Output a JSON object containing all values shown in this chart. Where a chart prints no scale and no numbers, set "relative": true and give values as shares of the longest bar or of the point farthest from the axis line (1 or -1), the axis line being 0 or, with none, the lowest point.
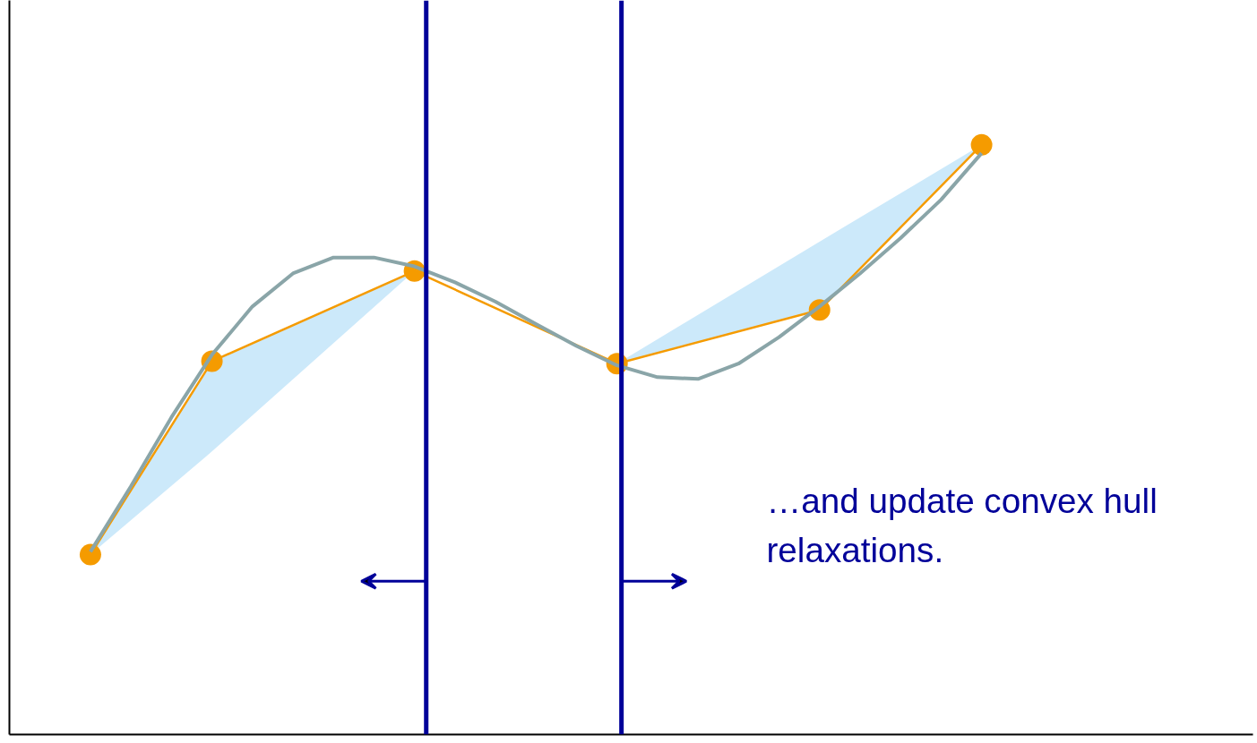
{
  "chart_data": {
    "type": "line",
    "relative": true,
    "grid": false,
    "tick_labels": false,
    "marker": "none",
    "categories": [
      null,
      null,
      null,
      null,
      null,
      null,
      null,
      null,
      null,
      null,
      null,
      null,
      null,
      null,
      null,
      null,
      null,
      null,
      null,
      null,
      null,
      null,
      null
    ],
    "series": [
      {
        "color": "#f59b00",
        "marker": "circle",
        "values": [
          0.305,
          null,
          null,
          0.633,
          null,
          null,
          null,
          null,
          0.786,
          null,
          null,
          null,
          null,
          0.629,
          null,
          null,
          null,
          null,
          0.72,
          null,
          null,
          null,
          1.0
        ],
        "lower": [
          0.305,
          null,
          null,
          0.48,
          null,
          null,
          null,
          null,
          0.786,
          null,
          null,
          null,
          null,
          0.629,
          null,
          null,
          null,
          null,
          0.72,
          null,
          null,
          null,
          1.0
        ],
        "upper": [
          0.305,
          null,
          null,
          0.633,
          null,
          null,
          null,
          null,
          0.786,
          null,
          null,
          null,
          null,
          0.629,
          null,
          null,
          null,
          null,
          0.836,
          null,
          null,
          null,
          1.0
        ]
      },
      {
        "color": "#8aa5a8",
        "values": [
          0.31,
          0.421,
          0.538,
          0.644,
          0.726,
          0.782,
          0.809,
          0.809,
          0.794,
          0.767,
          0.734,
          0.696,
          0.659,
          0.626,
          0.606,
          0.603,
          0.629,
          0.674,
          0.726,
          0.782,
          0.842,
          0.907,
          0.986
        ]
      }
    ],
    "annotations": [
      "…and update convex hull relaxations."
    ]
  }
}
